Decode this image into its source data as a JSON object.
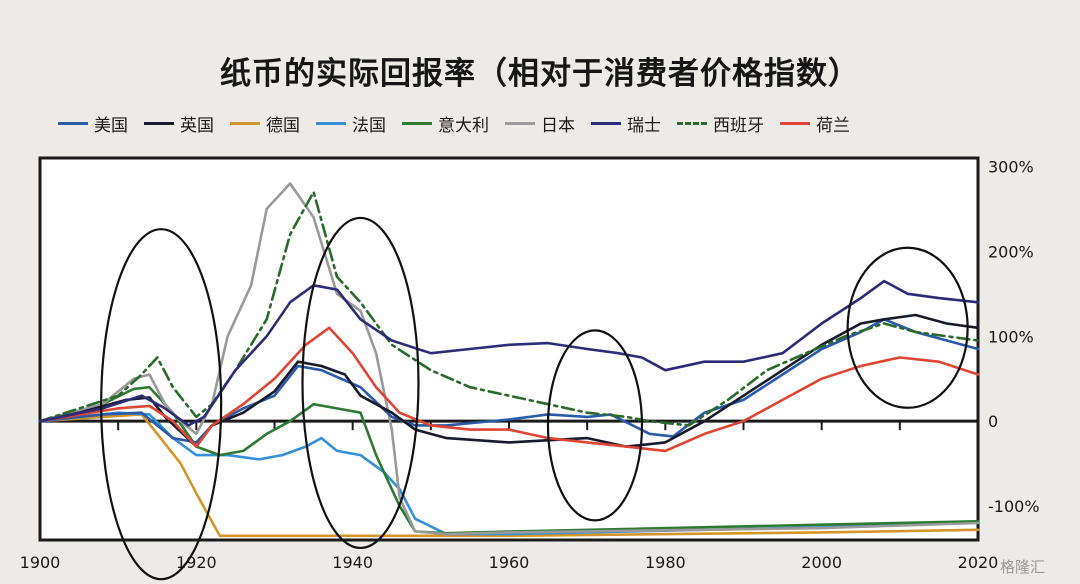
{
  "title": "纸币的实际回报率（相对于消费者价格指数）",
  "watermark": "格隆汇",
  "chart_data": {
    "type": "line",
    "title": "纸币的实际回报率（相对于消费者价格指数）",
    "xlabel": "",
    "ylabel": "",
    "x_ticks": [
      "1900",
      "1920",
      "1940",
      "1960",
      "1980",
      "2000",
      "2020"
    ],
    "y_ticks": [
      "300%",
      "200%",
      "100%",
      "0",
      "-100%"
    ],
    "xlim": [
      1900,
      2020
    ],
    "ylim": [
      -140,
      310
    ],
    "legend_position": "top",
    "annotations": "black ellipses around ~1910-1922, ~1935-1947, ~1963-1978, ~2004-2018",
    "series": [
      {
        "name": "美国",
        "color": "#2a5aa8",
        "style": "solid",
        "points": [
          [
            1900,
            0
          ],
          [
            1908,
            8
          ],
          [
            1913,
            10
          ],
          [
            1917,
            -20
          ],
          [
            1920,
            -25
          ],
          [
            1922,
            -5
          ],
          [
            1926,
            15
          ],
          [
            1930,
            30
          ],
          [
            1933,
            65
          ],
          [
            1936,
            60
          ],
          [
            1941,
            40
          ],
          [
            1945,
            5
          ],
          [
            1948,
            -5
          ],
          [
            1952,
            -5
          ],
          [
            1960,
            2
          ],
          [
            1965,
            8
          ],
          [
            1970,
            5
          ],
          [
            1973,
            8
          ],
          [
            1978,
            -15
          ],
          [
            1981,
            -18
          ],
          [
            1985,
            10
          ],
          [
            1990,
            25
          ],
          [
            1995,
            55
          ],
          [
            2000,
            85
          ],
          [
            2005,
            105
          ],
          [
            2008,
            120
          ],
          [
            2012,
            105
          ],
          [
            2016,
            95
          ],
          [
            2020,
            85
          ]
        ]
      },
      {
        "name": "英国",
        "color": "#1a1a2e",
        "style": "solid",
        "points": [
          [
            1900,
            0
          ],
          [
            1905,
            10
          ],
          [
            1911,
            25
          ],
          [
            1914,
            28
          ],
          [
            1916,
            5
          ],
          [
            1920,
            -30
          ],
          [
            1922,
            -5
          ],
          [
            1926,
            10
          ],
          [
            1930,
            35
          ],
          [
            1933,
            70
          ],
          [
            1936,
            65
          ],
          [
            1939,
            55
          ],
          [
            1941,
            30
          ],
          [
            1945,
            10
          ],
          [
            1948,
            -10
          ],
          [
            1952,
            -20
          ],
          [
            1960,
            -25
          ],
          [
            1970,
            -20
          ],
          [
            1975,
            -30
          ],
          [
            1980,
            -25
          ],
          [
            1985,
            0
          ],
          [
            1990,
            30
          ],
          [
            1995,
            60
          ],
          [
            2000,
            90
          ],
          [
            2005,
            115
          ],
          [
            2008,
            120
          ],
          [
            2012,
            125
          ],
          [
            2016,
            115
          ],
          [
            2020,
            110
          ]
        ]
      },
      {
        "name": "德国",
        "color": "#d4952a",
        "style": "solid",
        "points": [
          [
            1900,
            0
          ],
          [
            1908,
            5
          ],
          [
            1913,
            8
          ],
          [
            1915,
            -15
          ],
          [
            1918,
            -50
          ],
          [
            1920,
            -85
          ],
          [
            1923,
            -135
          ],
          [
            1926,
            -135
          ],
          [
            1960,
            -135
          ],
          [
            2000,
            -131
          ],
          [
            2020,
            -128
          ]
        ]
      },
      {
        "name": "法国",
        "color": "#3490d8",
        "style": "solid",
        "points": [
          [
            1900,
            0
          ],
          [
            1910,
            10
          ],
          [
            1914,
            8
          ],
          [
            1917,
            -20
          ],
          [
            1920,
            -40
          ],
          [
            1924,
            -40
          ],
          [
            1928,
            -45
          ],
          [
            1931,
            -40
          ],
          [
            1934,
            -30
          ],
          [
            1936,
            -20
          ],
          [
            1938,
            -35
          ],
          [
            1941,
            -40
          ],
          [
            1944,
            -60
          ],
          [
            1946,
            -80
          ],
          [
            1948,
            -115
          ],
          [
            1952,
            -133
          ],
          [
            1960,
            -133
          ],
          [
            2000,
            -125
          ],
          [
            2020,
            -118
          ]
        ]
      },
      {
        "name": "意大利",
        "color": "#2e7a33",
        "style": "solid",
        "points": [
          [
            1900,
            0
          ],
          [
            1908,
            20
          ],
          [
            1912,
            38
          ],
          [
            1914,
            40
          ],
          [
            1917,
            10
          ],
          [
            1920,
            -30
          ],
          [
            1923,
            -40
          ],
          [
            1926,
            -35
          ],
          [
            1929,
            -15
          ],
          [
            1932,
            0
          ],
          [
            1935,
            20
          ],
          [
            1938,
            15
          ],
          [
            1941,
            10
          ],
          [
            1943,
            -40
          ],
          [
            1946,
            -100
          ],
          [
            1948,
            -130
          ],
          [
            1952,
            -132
          ],
          [
            1960,
            -130
          ],
          [
            2000,
            -122
          ],
          [
            2020,
            -118
          ]
        ]
      },
      {
        "name": "日本",
        "color": "#9a9a9a",
        "style": "solid",
        "points": [
          [
            1900,
            0
          ],
          [
            1908,
            20
          ],
          [
            1912,
            50
          ],
          [
            1914,
            55
          ],
          [
            1916,
            20
          ],
          [
            1918,
            0
          ],
          [
            1920,
            -15
          ],
          [
            1922,
            20
          ],
          [
            1924,
            100
          ],
          [
            1927,
            160
          ],
          [
            1929,
            250
          ],
          [
            1932,
            280
          ],
          [
            1935,
            240
          ],
          [
            1938,
            150
          ],
          [
            1941,
            130
          ],
          [
            1943,
            80
          ],
          [
            1945,
            -10
          ],
          [
            1946,
            -90
          ],
          [
            1948,
            -130
          ],
          [
            1952,
            -133
          ],
          [
            1960,
            -131
          ],
          [
            2000,
            -126
          ],
          [
            2020,
            -120
          ]
        ]
      },
      {
        "name": "瑞士",
        "color": "#2c2c78",
        "style": "solid",
        "points": [
          [
            1900,
            0
          ],
          [
            1908,
            15
          ],
          [
            1913,
            30
          ],
          [
            1916,
            15
          ],
          [
            1919,
            -5
          ],
          [
            1921,
            5
          ],
          [
            1925,
            60
          ],
          [
            1929,
            100
          ],
          [
            1932,
            140
          ],
          [
            1935,
            160
          ],
          [
            1938,
            155
          ],
          [
            1941,
            120
          ],
          [
            1945,
            95
          ],
          [
            1950,
            80
          ],
          [
            1955,
            85
          ],
          [
            1960,
            90
          ],
          [
            1965,
            92
          ],
          [
            1970,
            85
          ],
          [
            1974,
            80
          ],
          [
            1977,
            75
          ],
          [
            1980,
            60
          ],
          [
            1985,
            70
          ],
          [
            1990,
            70
          ],
          [
            1995,
            80
          ],
          [
            2000,
            115
          ],
          [
            2005,
            145
          ],
          [
            2008,
            165
          ],
          [
            2011,
            150
          ],
          [
            2015,
            145
          ],
          [
            2020,
            140
          ]
        ]
      },
      {
        "name": "西班牙",
        "color": "#2a6a2a",
        "style": "dashdot",
        "points": [
          [
            1900,
            0
          ],
          [
            1910,
            30
          ],
          [
            1913,
            55
          ],
          [
            1915,
            75
          ],
          [
            1917,
            40
          ],
          [
            1920,
            5
          ],
          [
            1922,
            20
          ],
          [
            1925,
            60
          ],
          [
            1929,
            120
          ],
          [
            1932,
            220
          ],
          [
            1935,
            270
          ],
          [
            1938,
            170
          ],
          [
            1941,
            140
          ],
          [
            1945,
            90
          ],
          [
            1950,
            60
          ],
          [
            1955,
            40
          ],
          [
            1960,
            30
          ],
          [
            1965,
            20
          ],
          [
            1970,
            10
          ],
          [
            1975,
            5
          ],
          [
            1978,
            0
          ],
          [
            1983,
            -5
          ],
          [
            1988,
            25
          ],
          [
            1993,
            60
          ],
          [
            1998,
            80
          ],
          [
            2003,
            100
          ],
          [
            2008,
            115
          ],
          [
            2012,
            105
          ],
          [
            2016,
            100
          ],
          [
            2020,
            95
          ]
        ]
      },
      {
        "name": "荷兰",
        "color": "#e04432",
        "style": "solid",
        "points": [
          [
            1900,
            0
          ],
          [
            1910,
            15
          ],
          [
            1914,
            18
          ],
          [
            1917,
            0
          ],
          [
            1920,
            -30
          ],
          [
            1922,
            -5
          ],
          [
            1926,
            20
          ],
          [
            1930,
            50
          ],
          [
            1934,
            90
          ],
          [
            1937,
            110
          ],
          [
            1940,
            80
          ],
          [
            1943,
            40
          ],
          [
            1946,
            10
          ],
          [
            1950,
            -5
          ],
          [
            1955,
            -10
          ],
          [
            1960,
            -10
          ],
          [
            1965,
            -20
          ],
          [
            1970,
            -25
          ],
          [
            1975,
            -30
          ],
          [
            1980,
            -35
          ],
          [
            1985,
            -15
          ],
          [
            1990,
            0
          ],
          [
            1995,
            25
          ],
          [
            2000,
            50
          ],
          [
            2005,
            65
          ],
          [
            2010,
            75
          ],
          [
            2015,
            70
          ],
          [
            2020,
            55
          ]
        ]
      }
    ]
  }
}
